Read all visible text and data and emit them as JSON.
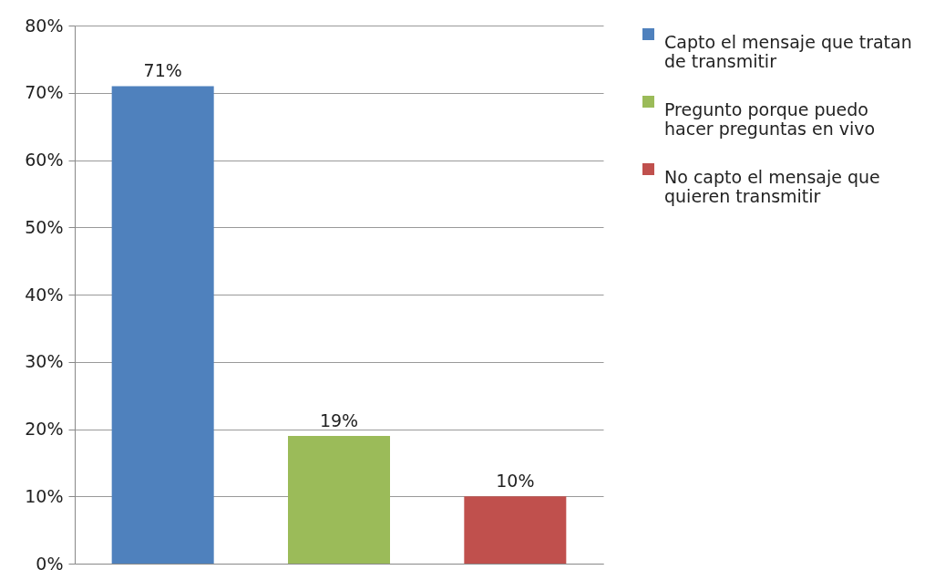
{
  "chart_data": {
    "type": "bar",
    "categories": [
      null,
      null,
      null
    ],
    "series": [
      {
        "name": "Capto el mensaje que tratan de transmitir",
        "color": "#4f81bd",
        "values": [
          71,
          null,
          null
        ],
        "value_labels": [
          "71%",
          null,
          null
        ]
      },
      {
        "name": "Pregunto porque puedo hacer preguntas en vivo",
        "color": "#9bbb59",
        "values": [
          null,
          19,
          null
        ],
        "value_labels": [
          null,
          "19%",
          null
        ]
      },
      {
        "name": "No capto el mensaje que quieren transmitir",
        "color": "#c0504d",
        "values": [
          null,
          null,
          10
        ],
        "value_labels": [
          null,
          null,
          "10%"
        ]
      }
    ],
    "ylim": [
      0,
      80
    ],
    "yticks": [
      {
        "value": 0,
        "label": "0%"
      },
      {
        "value": 10,
        "label": "10%"
      },
      {
        "value": 20,
        "label": "20%"
      },
      {
        "value": 30,
        "label": "30%"
      },
      {
        "value": 40,
        "label": "40%"
      },
      {
        "value": 50,
        "label": "50%"
      },
      {
        "value": 60,
        "label": "60%"
      },
      {
        "value": 70,
        "label": "70%"
      },
      {
        "value": 80,
        "label": "80%"
      }
    ],
    "grid": "y",
    "legend": "right",
    "tick_labels": "y"
  }
}
